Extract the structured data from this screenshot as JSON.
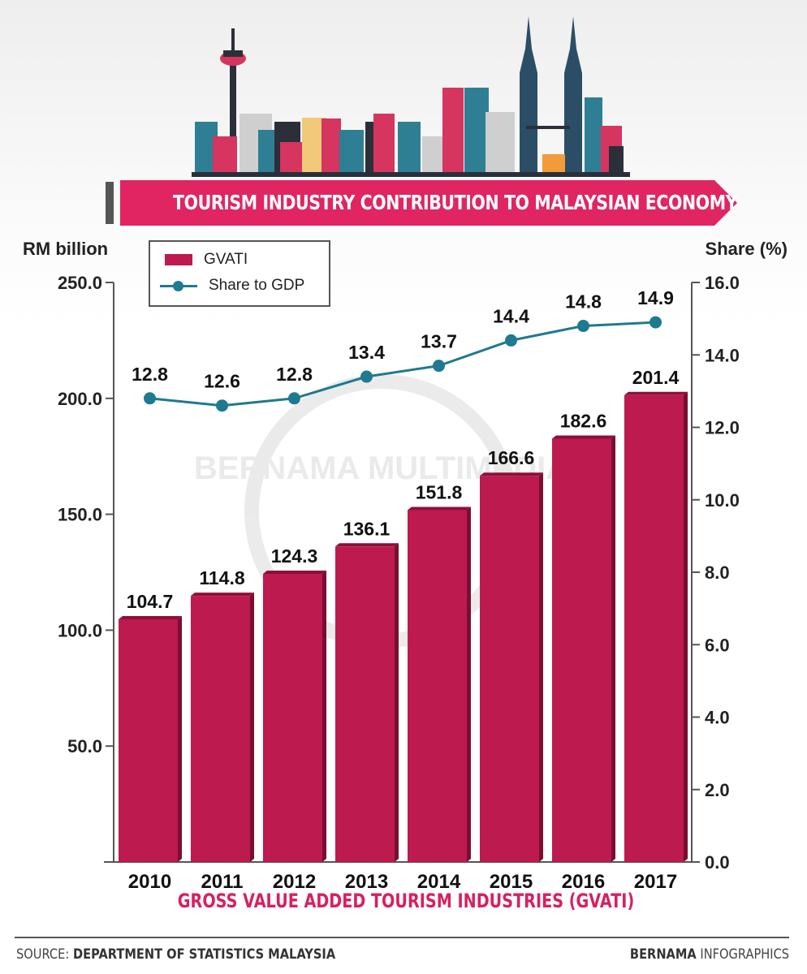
{
  "header": {
    "title": "TOURISM INDUSTRY CONTRIBUTION TO MALAYSIAN ECONOMY"
  },
  "legend": {
    "bar_label": "GVATI",
    "line_label": "Share to GDP"
  },
  "chart_data": {
    "type": "bar",
    "categories": [
      "2010",
      "2011",
      "2012",
      "2013",
      "2014",
      "2015",
      "2016",
      "2017"
    ],
    "series": [
      {
        "name": "GVATI",
        "type": "bar",
        "axis": "left",
        "color": "#bd1a4f",
        "values": [
          104.7,
          114.8,
          124.3,
          136.1,
          151.8,
          166.6,
          182.6,
          201.4
        ],
        "labels": [
          "104.7",
          "114.8",
          "124.3",
          "136.1",
          "151.8",
          "166.6",
          "182.6",
          "201.4"
        ]
      },
      {
        "name": "Share to GDP",
        "type": "line",
        "axis": "right",
        "color": "#1e7a90",
        "values": [
          12.8,
          12.6,
          12.8,
          13.4,
          13.7,
          14.4,
          14.8,
          14.9
        ],
        "labels": [
          "12.8",
          "12.6",
          "12.8",
          "13.4",
          "13.7",
          "14.4",
          "14.8",
          "14.9"
        ]
      }
    ],
    "ylabel": "RM billion",
    "y2label": "Share (%)",
    "xlabel": "GROSS VALUE ADDED TOURISM INDUSTRIES (GVATI)",
    "ylim": [
      0,
      250
    ],
    "y2lim": [
      0,
      16
    ],
    "yticks": [
      "50.0",
      "100.0",
      "150.0",
      "200.0",
      "250.0"
    ],
    "y2ticks": [
      "0.0",
      "2.0",
      "4.0",
      "6.0",
      "8.0",
      "10.0",
      "12.0",
      "14.0",
      "16.0"
    ],
    "legend_position": "top-left",
    "grid": false
  },
  "watermark": "BERNAMA MULTIMEDIA",
  "footer": {
    "source_prefix": "SOURCE: ",
    "source_name": "DEPARTMENT OF STATISTICS MALAYSIA",
    "credit_brand": "BERNAMA",
    "credit_suffix": " INFOGRAPHICS"
  }
}
